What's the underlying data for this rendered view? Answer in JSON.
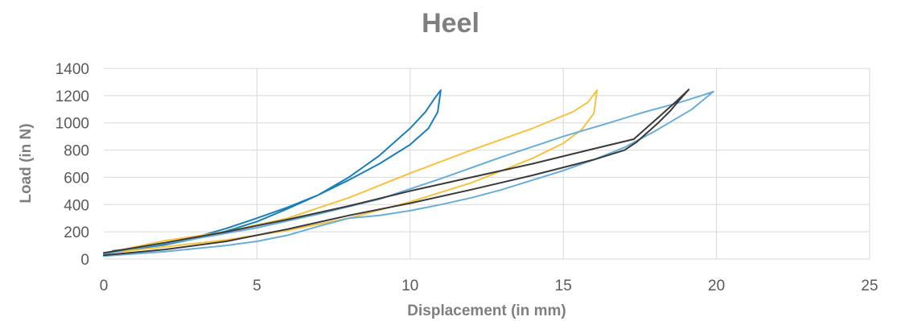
{
  "chart_data": {
    "type": "line",
    "title": "Heel",
    "xlabel": "Displacement (in mm)",
    "ylabel": "Load (in N)",
    "xlim": [
      0,
      25
    ],
    "ylim": [
      0,
      1400
    ],
    "x_ticks": [
      "0",
      "5",
      "10",
      "15",
      "20",
      "25"
    ],
    "y_ticks": [
      "0",
      "200",
      "400",
      "600",
      "800",
      "1000",
      "1200",
      "1400"
    ],
    "grid": true,
    "legend": "none",
    "series": [
      {
        "color": "#1a7fb5",
        "points": [
          [
            0.3,
            60
          ],
          [
            1,
            80
          ],
          [
            2,
            110
          ],
          [
            3,
            160
          ],
          [
            4,
            225
          ],
          [
            5,
            300
          ],
          [
            6,
            380
          ],
          [
            7,
            470
          ],
          [
            8,
            580
          ],
          [
            9,
            700
          ],
          [
            10,
            840
          ],
          [
            10.6,
            960
          ],
          [
            10.9,
            1080
          ],
          [
            11.0,
            1240
          ],
          [
            10.8,
            1180
          ],
          [
            10.5,
            1080
          ],
          [
            10,
            960
          ],
          [
            9,
            760
          ],
          [
            8,
            600
          ],
          [
            7,
            470
          ],
          [
            6,
            370
          ],
          [
            5,
            275
          ],
          [
            4,
            205
          ],
          [
            3,
            150
          ],
          [
            2,
            105
          ],
          [
            1,
            75
          ],
          [
            0.3,
            60
          ]
        ]
      },
      {
        "color": "#f5c342",
        "points": [
          [
            0.3,
            48
          ],
          [
            2,
            90
          ],
          [
            4,
            140
          ],
          [
            6,
            210
          ],
          [
            8,
            300
          ],
          [
            10,
            420
          ],
          [
            12,
            560
          ],
          [
            14,
            740
          ],
          [
            15,
            850
          ],
          [
            15.6,
            950
          ],
          [
            16.0,
            1070
          ],
          [
            16.1,
            1240
          ],
          [
            15.8,
            1150
          ],
          [
            15.3,
            1080
          ],
          [
            14,
            960
          ],
          [
            12,
            800
          ],
          [
            10,
            630
          ],
          [
            8,
            450
          ],
          [
            6,
            300
          ],
          [
            4,
            200
          ],
          [
            2,
            135
          ],
          [
            0.3,
            55
          ]
        ]
      },
      {
        "color": "#6aaed6",
        "points": [
          [
            0,
            22
          ],
          [
            2,
            55
          ],
          [
            4,
            100
          ],
          [
            5,
            130
          ],
          [
            6,
            175
          ],
          [
            7,
            240
          ],
          [
            8,
            300
          ],
          [
            9,
            320
          ],
          [
            10,
            355
          ],
          [
            11,
            400
          ],
          [
            12,
            450
          ],
          [
            13,
            510
          ],
          [
            14,
            580
          ],
          [
            15,
            650
          ],
          [
            16,
            730
          ],
          [
            17,
            820
          ],
          [
            17.5,
            880
          ],
          [
            18,
            940
          ],
          [
            18.6,
            1020
          ],
          [
            19.2,
            1100
          ],
          [
            19.9,
            1230
          ],
          [
            19.5,
            1200
          ],
          [
            18.8,
            1150
          ],
          [
            17.5,
            1070
          ],
          [
            16.5,
            1000
          ],
          [
            15,
            900
          ],
          [
            13,
            750
          ],
          [
            11,
            590
          ],
          [
            9,
            440
          ],
          [
            7,
            330
          ],
          [
            5,
            230
          ],
          [
            3,
            150
          ],
          [
            1,
            80
          ],
          [
            0,
            35
          ]
        ]
      },
      {
        "color": "#3a3a3a",
        "points": [
          [
            0,
            28
          ],
          [
            2,
            70
          ],
          [
            4,
            130
          ],
          [
            6,
            220
          ],
          [
            8,
            320
          ],
          [
            10,
            410
          ],
          [
            12,
            510
          ],
          [
            14,
            615
          ],
          [
            16,
            730
          ],
          [
            17,
            800
          ],
          [
            17.4,
            860
          ],
          [
            17.7,
            920
          ],
          [
            18.1,
            1000
          ],
          [
            18.5,
            1090
          ],
          [
            18.8,
            1170
          ],
          [
            19.1,
            1245
          ],
          [
            18.7,
            1160
          ],
          [
            18.2,
            1060
          ],
          [
            17.7,
            960
          ],
          [
            17.3,
            880
          ],
          [
            16,
            810
          ],
          [
            14,
            700
          ],
          [
            12,
            600
          ],
          [
            10,
            500
          ],
          [
            8,
            390
          ],
          [
            6,
            290
          ],
          [
            4,
            200
          ],
          [
            2,
            120
          ],
          [
            0,
            45
          ]
        ]
      }
    ]
  }
}
